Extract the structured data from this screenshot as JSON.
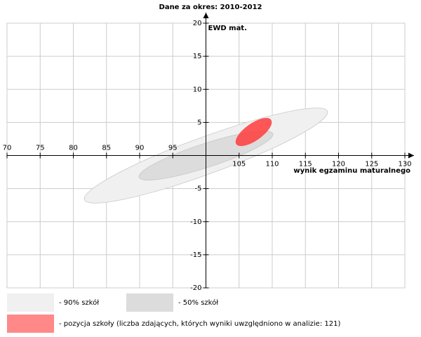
{
  "chart_data": {
    "type": "ellipse",
    "title": "Dane za okres: 2010-2012",
    "x_label": "wynik egzaminu maturalnego",
    "y_label": "EWD mat.",
    "xlim": [
      70,
      130
    ],
    "ylim": [
      -20,
      20
    ],
    "xticks": [
      70,
      75,
      80,
      85,
      90,
      95,
      105,
      110,
      115,
      120,
      125,
      130
    ],
    "yticks": [
      -20,
      -15,
      -10,
      -5,
      5,
      10,
      15,
      20
    ],
    "axes_cross": {
      "x": 100,
      "y": 0
    },
    "grid": true,
    "series": [
      {
        "name": "- 90% szkół",
        "color": "#f0f0f0",
        "center": [
          100,
          0
        ],
        "semi_axes": [
          19.5,
          2.8
        ],
        "angle": 20
      },
      {
        "name": "- 50% szkół",
        "color": "#dcdcdc",
        "center": [
          100,
          0
        ],
        "semi_axes": [
          10.6,
          1.8
        ],
        "angle": 18
      },
      {
        "name": "- pozycja szkoły (liczba zdających, których wyniki uwzględniono w analizie: 121)",
        "color": "#ff3b3b",
        "center": [
          107.2,
          3.55
        ],
        "semi_axes": [
          3.2,
          1.3
        ],
        "angle": 35
      }
    ]
  }
}
